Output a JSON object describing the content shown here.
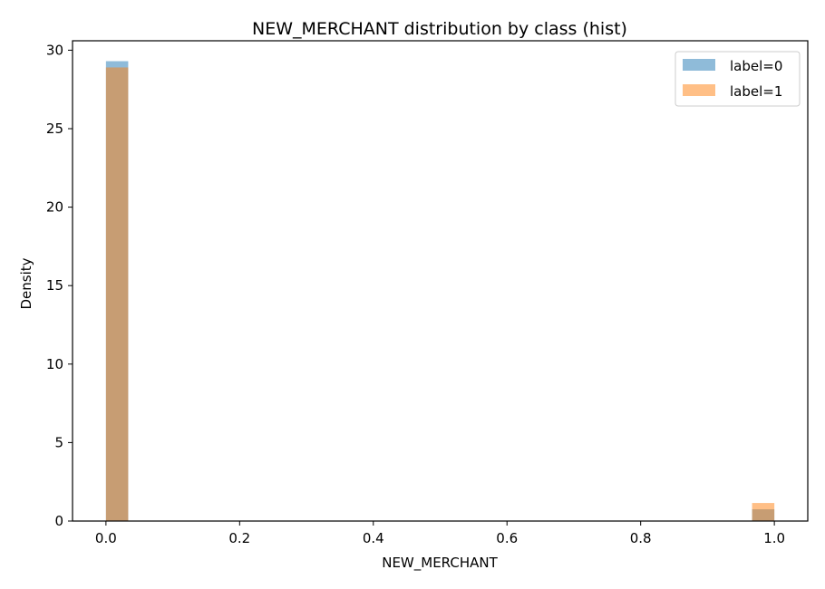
{
  "chart_data": {
    "type": "bar",
    "title": "NEW_MERCHANT distribution by class (hist)",
    "xlabel": "NEW_MERCHANT",
    "ylabel": "Density",
    "xlim": [
      -0.05,
      1.05
    ],
    "ylim": [
      0,
      30.6
    ],
    "xticks": [
      {
        "value": 0.0,
        "label": "0.0"
      },
      {
        "value": 0.2,
        "label": "0.2"
      },
      {
        "value": 0.4,
        "label": "0.4"
      },
      {
        "value": 0.6,
        "label": "0.6"
      },
      {
        "value": 0.8,
        "label": "0.8"
      },
      {
        "value": 1.0,
        "label": "1.0"
      }
    ],
    "yticks": [
      {
        "value": 0,
        "label": "0"
      },
      {
        "value": 5,
        "label": "5"
      },
      {
        "value": 10,
        "label": "10"
      },
      {
        "value": 15,
        "label": "15"
      },
      {
        "value": 20,
        "label": "20"
      },
      {
        "value": 25,
        "label": "25"
      },
      {
        "value": 30,
        "label": "30"
      }
    ],
    "grid": false,
    "legend_position": "top-right",
    "series": [
      {
        "name": "label=0",
        "color": "#1f77b4",
        "opacity": 0.5,
        "bins": [
          {
            "x0": 0.0,
            "x1": 0.0333,
            "value": 29.3
          },
          {
            "x0": 0.9667,
            "x1": 1.0,
            "value": 0.75
          }
        ]
      },
      {
        "name": "label=1",
        "color": "#ff7f0e",
        "opacity": 0.5,
        "bins": [
          {
            "x0": 0.0,
            "x1": 0.0333,
            "value": 28.9
          },
          {
            "x0": 0.9667,
            "x1": 1.0,
            "value": 1.15
          }
        ]
      }
    ]
  }
}
